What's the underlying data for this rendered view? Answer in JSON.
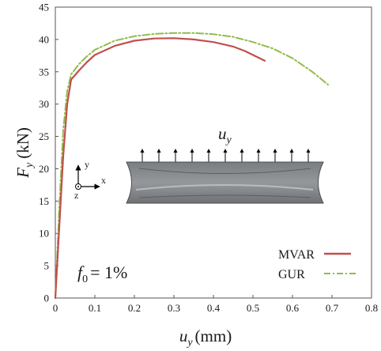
{
  "chart_data": {
    "type": "line",
    "title": "",
    "xlabel": {
      "main": "u",
      "sub": "y",
      "unit": "(mm)"
    },
    "ylabel": {
      "main": "F",
      "sub": "y",
      "unit": "(kN)"
    },
    "xlim": [
      0,
      0.8
    ],
    "ylim": [
      0,
      45
    ],
    "xticks": [
      0,
      0.1,
      0.2,
      0.3,
      0.4,
      0.5,
      0.6,
      0.7,
      0.8
    ],
    "xtick_labels": [
      "0",
      "0.1",
      "0.2",
      "0.3",
      "0.4",
      "0.5",
      "0.6",
      "0.7",
      "0.8"
    ],
    "yticks": [
      0,
      5,
      10,
      15,
      20,
      25,
      30,
      35,
      40,
      45
    ],
    "ytick_labels": [
      "0",
      "5",
      "10",
      "15",
      "20",
      "25",
      "30",
      "35",
      "40",
      "45"
    ],
    "grid": false,
    "legend_position": "bottom-right",
    "series": [
      {
        "name": "MVAR",
        "color": "#c0504d",
        "style": "solid",
        "x": [
          0,
          0.01,
          0.02,
          0.03,
          0.04,
          0.06,
          0.08,
          0.1,
          0.15,
          0.2,
          0.25,
          0.3,
          0.35,
          0.4,
          0.45,
          0.48,
          0.5,
          0.53
        ],
        "y": [
          0,
          11,
          22,
          30,
          33.8,
          35.2,
          36.5,
          37.6,
          39.0,
          39.8,
          40.15,
          40.2,
          40.0,
          39.6,
          38.9,
          38.2,
          37.6,
          36.7
        ]
      },
      {
        "name": "GUR",
        "color": "#8fbc4a",
        "style": "dashdot",
        "x": [
          0,
          0.01,
          0.02,
          0.03,
          0.04,
          0.06,
          0.08,
          0.1,
          0.15,
          0.2,
          0.25,
          0.3,
          0.35,
          0.4,
          0.45,
          0.5,
          0.55,
          0.6,
          0.65,
          0.69
        ],
        "y": [
          0,
          14,
          26,
          32,
          34.6,
          36.2,
          37.4,
          38.4,
          39.8,
          40.5,
          40.85,
          41.0,
          41.0,
          40.8,
          40.4,
          39.6,
          38.6,
          37.1,
          35.0,
          33.0
        ]
      }
    ],
    "annotations": {
      "f0": {
        "main": "f",
        "sub": "0",
        "rest": "= 1%"
      },
      "uy": {
        "main": "u",
        "sub": "y"
      },
      "axes": {
        "x": "x",
        "y": "y",
        "z": "z"
      }
    }
  }
}
